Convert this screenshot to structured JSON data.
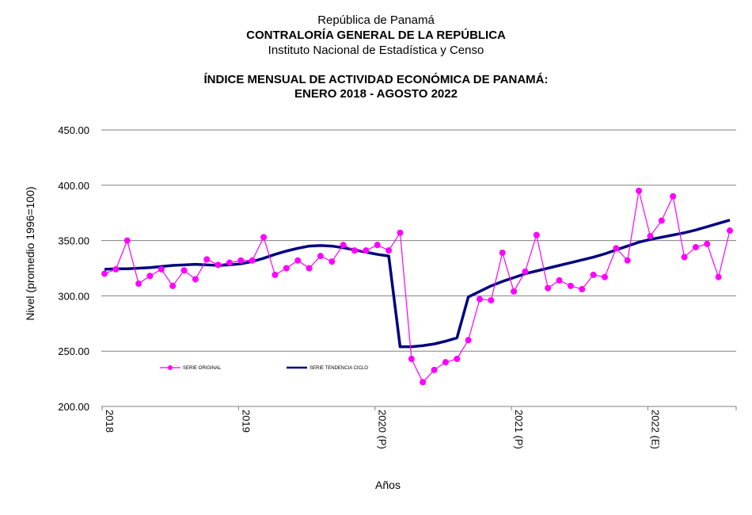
{
  "header": {
    "line1": "República de Panamá",
    "line2": "CONTRALORÍA GENERAL DE LA REPÚBLICA",
    "line3": "Instituto Nacional de Estadística y Censo",
    "title1": "ÍNDICE MENSUAL DE ACTIVIDAD ECONÓMICA DE PANAMÁ:",
    "title2": "ENERO 2018 -  AGOSTO 2022"
  },
  "chart_data": {
    "type": "line",
    "xlabel": "Años",
    "ylabel": "Nivel (promedio 1996=100)",
    "ylim": [
      200,
      450
    ],
    "yticks": [
      "200.00",
      "250.00",
      "300.00",
      "350.00",
      "400.00",
      "450.00"
    ],
    "grid": true,
    "legend_position": "bottom-left inside plot",
    "year_labels": [
      {
        "index": 0,
        "label": "2018"
      },
      {
        "index": 12,
        "label": "2019"
      },
      {
        "index": 24,
        "label": "2020 (P)"
      },
      {
        "index": 36,
        "label": "2021 (P)"
      },
      {
        "index": 48,
        "label": "2022 (E)"
      }
    ],
    "n_months": 56,
    "series": [
      {
        "name": "SERIE ORIGINAL",
        "color": "#ff00ff",
        "marker": "circle",
        "values": [
          320,
          324,
          350,
          311,
          318,
          324,
          309,
          323,
          315,
          333,
          328,
          330,
          332,
          332,
          353,
          319,
          325,
          332,
          325,
          336,
          331,
          346,
          341,
          341,
          346,
          341,
          357,
          243,
          222,
          233,
          240,
          243,
          260,
          297,
          296,
          339,
          304,
          322,
          355,
          307,
          314,
          309,
          306,
          319,
          317,
          343,
          332,
          395,
          354,
          368,
          390,
          335,
          344,
          347,
          317,
          359
        ]
      },
      {
        "name": "SERIE TENDENCIA CICLO",
        "color": "#000080",
        "marker": "none",
        "values": [
          324,
          324.5,
          324.5,
          325,
          325.5,
          326.5,
          327.5,
          328,
          328.5,
          328,
          327.5,
          328,
          329,
          331,
          334,
          337.5,
          340.5,
          343,
          345,
          345.5,
          345,
          343.5,
          341.5,
          339.5,
          337.5,
          336,
          254,
          254,
          255,
          256.5,
          259,
          262,
          299,
          304,
          309,
          313,
          316.5,
          320,
          322.5,
          325,
          327.5,
          330,
          332.5,
          335,
          338,
          341.5,
          345,
          348.5,
          351,
          353,
          355,
          357,
          359.5,
          362.5,
          365.5,
          368.5
        ]
      }
    ]
  }
}
